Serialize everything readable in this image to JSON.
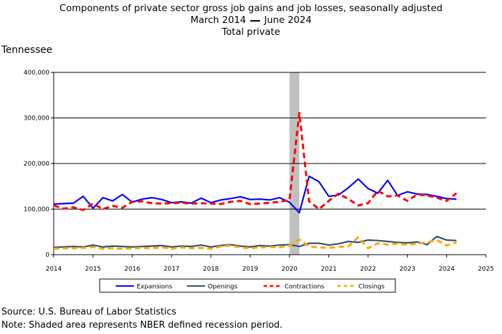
{
  "chart_data": {
    "type": "line",
    "title": "Components of private sector gross job gains and job losses, seasonally adjusted",
    "subtitle_start": "March 2014",
    "subtitle_end": "June 2024",
    "subtitle2": "Total private",
    "region": "Tennessee",
    "source": "Source: U.S. Bureau of Labor Statistics",
    "note": "Note: Shaded area represents NBER defined recession period.",
    "x_ticks": [
      "2014",
      "2015",
      "2016",
      "2017",
      "2018",
      "2019",
      "2020",
      "2021",
      "2022",
      "2023",
      "2024",
      "2025"
    ],
    "y_ticks": [
      "0",
      "100,000",
      "200,000",
      "300,000",
      "400,000"
    ],
    "xlim": [
      2014.0,
      2025.0
    ],
    "ylim": [
      0,
      400000
    ],
    "grid": true,
    "legend_position": "bottom",
    "recession_shade": {
      "start": 2020.0,
      "end": 2020.25,
      "color": "#c0c0c0"
    },
    "x": [
      2014.0,
      2014.25,
      2014.5,
      2014.75,
      2015.0,
      2015.25,
      2015.5,
      2015.75,
      2016.0,
      2016.25,
      2016.5,
      2016.75,
      2017.0,
      2017.25,
      2017.5,
      2017.75,
      2018.0,
      2018.25,
      2018.5,
      2018.75,
      2019.0,
      2019.25,
      2019.5,
      2019.75,
      2020.0,
      2020.25,
      2020.5,
      2020.75,
      2021.0,
      2021.25,
      2021.5,
      2021.75,
      2022.0,
      2022.25,
      2022.5,
      2022.75,
      2023.0,
      2023.25,
      2023.5,
      2023.75,
      2024.0,
      2024.25
    ],
    "series": [
      {
        "name": "Expansions",
        "color": "#0000ff",
        "dash": false,
        "values": [
          111000,
          112000,
          113000,
          128000,
          102000,
          125000,
          118000,
          132000,
          115000,
          122000,
          125000,
          121000,
          114000,
          116000,
          113000,
          124000,
          114000,
          120000,
          123000,
          127000,
          121000,
          122000,
          120000,
          125000,
          115000,
          92000,
          172000,
          160000,
          128000,
          131000,
          147000,
          166000,
          145000,
          135000,
          163000,
          130000,
          138000,
          133000,
          132000,
          128000,
          123000,
          122000
        ]
      },
      {
        "name": "Openings",
        "color": "#2f4f6f",
        "dash": false,
        "values": [
          16000,
          17000,
          18000,
          17000,
          21000,
          17000,
          19000,
          18000,
          17000,
          18000,
          19000,
          20000,
          17000,
          19000,
          18000,
          21000,
          17000,
          20000,
          22000,
          19000,
          17000,
          20000,
          19000,
          21000,
          22000,
          18000,
          25000,
          25000,
          21000,
          24000,
          29000,
          27000,
          32000,
          31000,
          29000,
          27000,
          26000,
          28000,
          22000,
          40000,
          32000,
          31000
        ]
      },
      {
        "name": "Contractions",
        "color": "#ff0000",
        "dash": true,
        "values": [
          108000,
          101000,
          104000,
          98000,
          112000,
          100000,
          107000,
          103000,
          116000,
          117000,
          113000,
          112000,
          113000,
          114000,
          112000,
          113000,
          112000,
          111000,
          116000,
          118000,
          111000,
          112000,
          114000,
          116000,
          120000,
          311000,
          117000,
          100000,
          118000,
          134000,
          122000,
          108000,
          113000,
          140000,
          128000,
          130000,
          118000,
          132000,
          130000,
          125000,
          118000,
          135000
        ]
      },
      {
        "name": "Closings",
        "color": "#ffa500",
        "dash": true,
        "values": [
          13000,
          14000,
          14000,
          15000,
          17000,
          13000,
          14000,
          13000,
          14000,
          15000,
          14000,
          16000,
          13000,
          16000,
          14000,
          15000,
          13000,
          18000,
          20000,
          16000,
          14000,
          16000,
          17000,
          16000,
          20000,
          33000,
          18000,
          16000,
          15000,
          17000,
          18000,
          38000,
          14000,
          25000,
          22000,
          24000,
          22000,
          24000,
          27000,
          32000,
          20000,
          27000
        ]
      }
    ]
  }
}
